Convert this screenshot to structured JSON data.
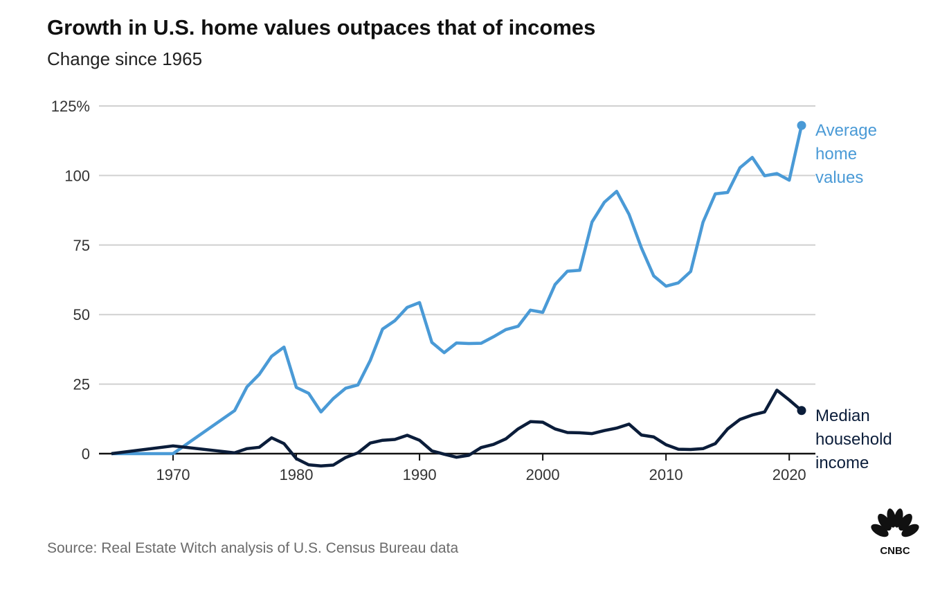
{
  "chart_data": {
    "type": "line",
    "title": "Growth in U.S. home values outpaces that of incomes",
    "subtitle": "Change since 1965",
    "source": "Source: Real Estate Witch analysis of U.S. Census Bureau data",
    "xlabel": "",
    "ylabel": "",
    "xlim": [
      1965,
      2021
    ],
    "ylim": [
      0,
      125
    ],
    "x_ticks": [
      1970,
      1980,
      1990,
      2000,
      2010,
      2020
    ],
    "y_ticks": [
      {
        "value": 0,
        "label": "0"
      },
      {
        "value": 25,
        "label": "25"
      },
      {
        "value": 50,
        "label": "50"
      },
      {
        "value": 75,
        "label": "75"
      },
      {
        "value": 100,
        "label": "100"
      },
      {
        "value": 125,
        "label": "125%"
      }
    ],
    "grid": true,
    "series": [
      {
        "name": "Average home values",
        "label_lines": [
          "Average",
          "home",
          "values"
        ],
        "color": "#4a9ad6",
        "x": [
          1965,
          1970,
          1975,
          1976,
          1977,
          1978,
          1979,
          1980,
          1981,
          1982,
          1983,
          1984,
          1985,
          1986,
          1987,
          1988,
          1989,
          1990,
          1991,
          1992,
          1993,
          1994,
          1995,
          1996,
          1997,
          1998,
          1999,
          2000,
          2001,
          2002,
          2003,
          2004,
          2005,
          2006,
          2007,
          2008,
          2009,
          2010,
          2011,
          2012,
          2013,
          2014,
          2015,
          2016,
          2017,
          2018,
          2019,
          2020,
          2021
        ],
        "y": [
          0,
          0,
          15.5,
          24,
          28.5,
          35,
          38.3,
          23.8,
          21.7,
          15,
          19.8,
          23.5,
          24.7,
          33.5,
          44.8,
          47.8,
          52.6,
          54.3,
          40,
          36.3,
          39.8,
          39.6,
          39.7,
          42,
          44.6,
          45.8,
          51.6,
          50.8,
          60.8,
          65.6,
          65.9,
          83.3,
          90.4,
          94.3,
          86,
          74,
          63.9,
          60.2,
          61.4,
          65.5,
          83.2,
          93.4,
          93.9,
          102.8,
          106.5,
          99.9,
          100.7,
          98.3,
          118
        ]
      },
      {
        "name": "Median household income",
        "label_lines": [
          "Median",
          "household",
          "income"
        ],
        "color": "#0b1d3a",
        "x": [
          1965,
          1970,
          1975,
          1976,
          1977,
          1978,
          1979,
          1980,
          1981,
          1982,
          1983,
          1984,
          1985,
          1986,
          1987,
          1988,
          1989,
          1990,
          1991,
          1992,
          1993,
          1994,
          1995,
          1996,
          1997,
          1998,
          1999,
          2000,
          2001,
          2002,
          2003,
          2004,
          2005,
          2006,
          2007,
          2008,
          2009,
          2010,
          2011,
          2012,
          2013,
          2014,
          2015,
          2016,
          2017,
          2018,
          2019,
          2020,
          2021
        ],
        "y": [
          0,
          2.8,
          0.3,
          1.8,
          2.3,
          5.7,
          3.6,
          -1.8,
          -4,
          -4.4,
          -4.1,
          -1.4,
          0.3,
          3.8,
          4.8,
          5.1,
          6.6,
          4.8,
          1,
          -0.2,
          -1.3,
          -0.6,
          2.2,
          3.3,
          5.3,
          8.9,
          11.5,
          11.3,
          8.9,
          7.6,
          7.5,
          7.2,
          8.3,
          9.2,
          10.6,
          6.7,
          6,
          3.2,
          1.6,
          1.5,
          1.8,
          3.6,
          8.9,
          12.3,
          13.9,
          15,
          22.8,
          19.3,
          15.5
        ]
      }
    ]
  },
  "logo": {
    "text": "CNBC"
  }
}
